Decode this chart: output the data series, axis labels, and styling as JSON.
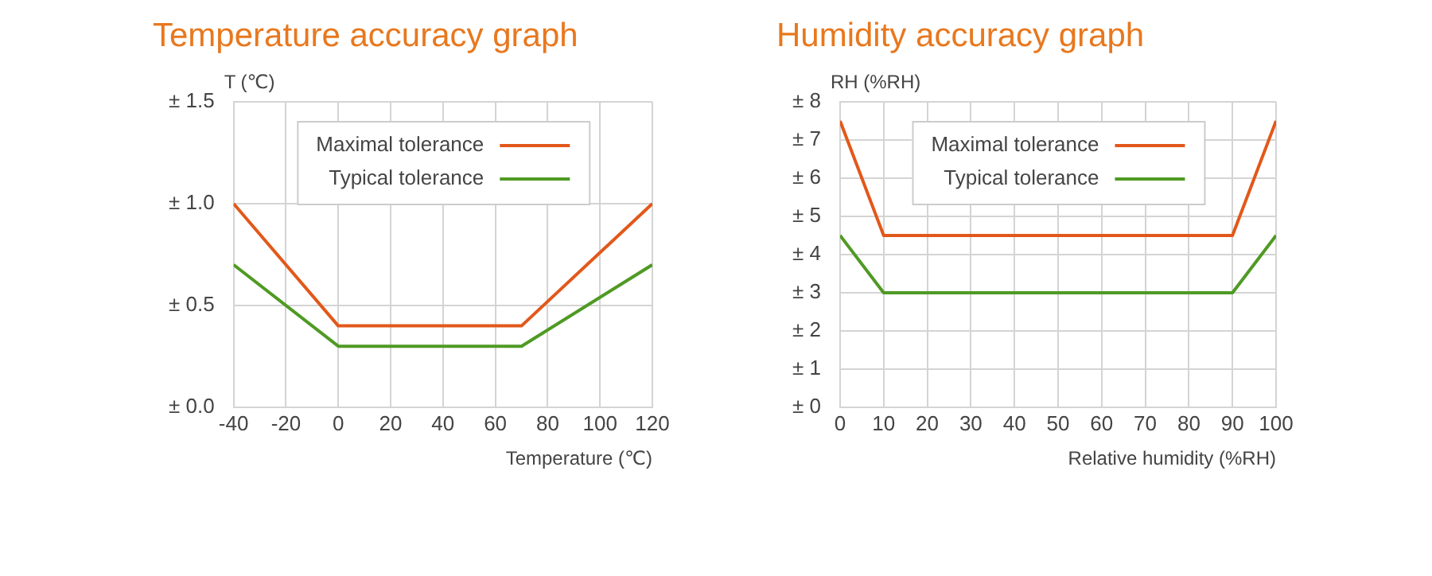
{
  "chart_data": [
    {
      "type": "line",
      "title": "Temperature accuracy graph",
      "xlabel": "Temperature (℃)",
      "ylabel": "T (℃)",
      "x": [
        -40,
        0,
        70,
        120
      ],
      "series": [
        {
          "name": "Maximal tolerance",
          "color": "#e2581a",
          "values": [
            1.0,
            0.4,
            0.4,
            1.0
          ]
        },
        {
          "name": "Typical tolerance",
          "color": "#4f9a24",
          "values": [
            0.7,
            0.3,
            0.3,
            0.7
          ]
        }
      ],
      "xlim": [
        -40,
        120
      ],
      "xticks": [
        -40,
        -20,
        0,
        20,
        40,
        60,
        80,
        100,
        120
      ],
      "ylim": [
        0,
        1.5
      ],
      "yticks": [
        {
          "value": 0,
          "label": "± 0.0"
        },
        {
          "value": 0.5,
          "label": "± 0.5"
        },
        {
          "value": 1,
          "label": "± 1.0"
        },
        {
          "value": 1.5,
          "label": "± 1.5"
        }
      ],
      "grid": true,
      "legend": "top",
      "marker": "none",
      "line_style": "solid"
    },
    {
      "type": "line",
      "title": "Humidity accuracy graph",
      "xlabel": "Relative humidity (%RH)",
      "ylabel": "RH (%RH)",
      "x": [
        0,
        10,
        90,
        100
      ],
      "series": [
        {
          "name": "Maximal tolerance",
          "color": "#e2581a",
          "values": [
            7.5,
            4.5,
            4.5,
            7.5
          ]
        },
        {
          "name": "Typical tolerance",
          "color": "#4f9a24",
          "values": [
            4.5,
            3,
            3,
            4.5
          ]
        }
      ],
      "xlim": [
        0,
        100
      ],
      "xticks": [
        0,
        10,
        20,
        30,
        40,
        50,
        60,
        70,
        80,
        90,
        100
      ],
      "ylim": [
        0,
        8
      ],
      "yticks": [
        {
          "value": 0,
          "label": "± 0"
        },
        {
          "value": 1,
          "label": "± 1"
        },
        {
          "value": 2,
          "label": "± 2"
        },
        {
          "value": 3,
          "label": "± 3"
        },
        {
          "value": 4,
          "label": "± 4"
        },
        {
          "value": 5,
          "label": "± 5"
        },
        {
          "value": 6,
          "label": "± 6"
        },
        {
          "value": 7,
          "label": "± 7"
        },
        {
          "value": 8,
          "label": "± 8"
        }
      ],
      "grid": true,
      "legend": "top",
      "marker": "none",
      "line_style": "solid"
    }
  ]
}
